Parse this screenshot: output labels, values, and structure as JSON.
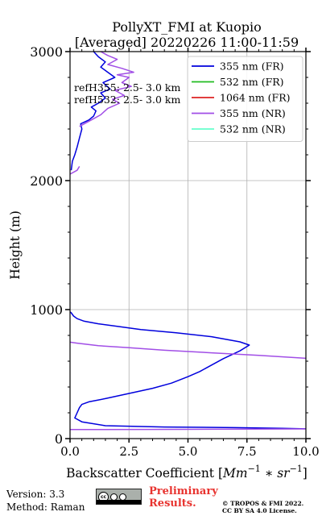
{
  "chart_data": {
    "type": "line",
    "title": "PollyXT_FMI at Kuopio",
    "subtitle": "[Averaged] 20220226 11:00-11:59",
    "xlabel": "Backscatter Coefficient [Mm⁻¹ * sr⁻¹]",
    "ylabel": "Height (m)",
    "xlim": [
      0,
      10
    ],
    "ylim": [
      0,
      3000
    ],
    "x_ticks": [
      0,
      2.5,
      5,
      7.5,
      10
    ],
    "x_tick_labels": [
      "0.0",
      "2.5",
      "5.0",
      "7.5",
      "10.0"
    ],
    "y_ticks": [
      0,
      1000,
      2000,
      3000
    ],
    "y_tick_labels": [
      "0",
      "1000",
      "2000",
      "3000"
    ],
    "grid": true,
    "legend_position": "top-right",
    "annotations": [
      "refH355:  2.5- 3.0 km",
      "refH532:  2.5- 3.0 km"
    ],
    "series": [
      {
        "name": "355 nm (FR)",
        "color": "#0000dd",
        "points": [
          [
            10.2,
            75
          ],
          [
            9.0,
            80
          ],
          [
            7.0,
            85
          ],
          [
            4.0,
            90
          ],
          [
            1.5,
            100
          ],
          [
            0.5,
            130
          ],
          [
            0.2,
            160
          ],
          [
            0.3,
            200
          ],
          [
            0.4,
            240
          ],
          [
            0.5,
            265
          ],
          [
            0.8,
            285
          ],
          [
            1.5,
            310
          ],
          [
            2.5,
            350
          ],
          [
            3.5,
            390
          ],
          [
            4.3,
            430
          ],
          [
            5.0,
            480
          ],
          [
            5.5,
            520
          ],
          [
            6.0,
            570
          ],
          [
            6.5,
            620
          ],
          [
            7.2,
            680
          ],
          [
            7.6,
            725
          ],
          [
            7.2,
            750
          ],
          [
            6.0,
            790
          ],
          [
            4.5,
            820
          ],
          [
            3.0,
            845
          ],
          [
            2.0,
            870
          ],
          [
            1.2,
            890
          ],
          [
            0.6,
            910
          ],
          [
            0.3,
            930
          ],
          [
            0.15,
            950
          ],
          [
            0.05,
            975
          ],
          [
            -0.05,
            990
          ],
          [
            0.05,
            2080
          ],
          [
            0.1,
            2150
          ],
          [
            0.2,
            2200
          ],
          [
            0.3,
            2260
          ],
          [
            0.4,
            2330
          ],
          [
            0.5,
            2400
          ],
          [
            0.45,
            2440
          ],
          [
            0.8,
            2470
          ],
          [
            1.0,
            2500
          ],
          [
            1.1,
            2540
          ],
          [
            0.9,
            2570
          ],
          [
            1.2,
            2600
          ],
          [
            1.5,
            2640
          ],
          [
            1.3,
            2680
          ],
          [
            1.7,
            2710
          ],
          [
            1.4,
            2760
          ],
          [
            1.9,
            2800
          ],
          [
            1.6,
            2840
          ],
          [
            1.3,
            2880
          ],
          [
            1.5,
            2920
          ],
          [
            1.2,
            2960
          ],
          [
            1.0,
            3000
          ]
        ]
      },
      {
        "name": "532 nm (FR)",
        "color": "#22bb22",
        "points": []
      },
      {
        "name": "1064 nm (FR)",
        "color": "#dd2222",
        "points": []
      },
      {
        "name": "355 nm (NR)",
        "color": "#a14ee6",
        "points": [
          [
            10.2,
            75
          ],
          [
            5.0,
            72
          ],
          [
            0.0,
            70
          ],
          [
            10.2,
            620
          ],
          [
            8.0,
            645
          ],
          [
            6.0,
            665
          ],
          [
            4.0,
            685
          ],
          [
            2.5,
            705
          ],
          [
            1.2,
            720
          ],
          [
            0.3,
            740
          ],
          [
            -0.1,
            750
          ],
          [
            0.0,
            2050
          ],
          [
            0.3,
            2080
          ],
          [
            0.4,
            2110
          ],
          [
            0.4,
            2420
          ],
          [
            0.9,
            2470
          ],
          [
            1.3,
            2510
          ],
          [
            1.6,
            2560
          ],
          [
            2.1,
            2600
          ],
          [
            1.8,
            2630
          ],
          [
            2.3,
            2660
          ],
          [
            1.9,
            2700
          ],
          [
            2.6,
            2730
          ],
          [
            2.2,
            2760
          ],
          [
            2.5,
            2800
          ],
          [
            2.0,
            2820
          ],
          [
            2.7,
            2840
          ],
          [
            2.2,
            2870
          ],
          [
            1.6,
            2900
          ],
          [
            2.0,
            2940
          ],
          [
            1.6,
            2970
          ],
          [
            1.3,
            3000
          ]
        ]
      },
      {
        "name": "532 nm (NR)",
        "color": "#66ffcc",
        "points": []
      }
    ]
  },
  "footer": {
    "version": "Version: 3.3",
    "method": "Method: Raman",
    "badge_text": "cc",
    "preliminary_line1": "Preliminary",
    "preliminary_line2": "Results.",
    "copyright_line1": "© TROPOS & FMI 2022.",
    "copyright_line2": "CC BY SA 4.0 License."
  }
}
